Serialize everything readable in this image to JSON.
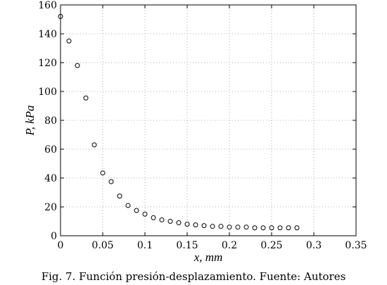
{
  "chart_data": {
    "type": "scatter",
    "xlabel": "x, mm",
    "ylabel": "P, kPa",
    "xlim": [
      0,
      0.35
    ],
    "ylim": [
      0,
      160
    ],
    "xticks": [
      0,
      0.05,
      0.1,
      0.15,
      0.2,
      0.25,
      0.3,
      0.35
    ],
    "xtick_labels": [
      "0",
      "0.05",
      "0.1",
      "0.15",
      "0.2",
      "0.25",
      "0.3",
      "0.35"
    ],
    "yticks": [
      0,
      20,
      40,
      60,
      80,
      100,
      120,
      140,
      160
    ],
    "ytick_labels": [
      "0",
      "20",
      "40",
      "60",
      "80",
      "100",
      "120",
      "140",
      "160"
    ],
    "grid": true,
    "marker": "open-circle",
    "series": [
      {
        "x": [
          0,
          0.01,
          0.02,
          0.03,
          0.04,
          0.05,
          0.06,
          0.07,
          0.08,
          0.09,
          0.1,
          0.11,
          0.12,
          0.13,
          0.14,
          0.15,
          0.16,
          0.17,
          0.18,
          0.19,
          0.2,
          0.21,
          0.22,
          0.23,
          0.24,
          0.25,
          0.26,
          0.27,
          0.28
        ],
        "y": [
          152,
          135,
          118,
          95.5,
          63,
          43.5,
          37.5,
          27.5,
          21,
          17.5,
          15,
          12.5,
          11,
          10,
          9,
          8,
          7.5,
          7,
          6.5,
          6.5,
          6,
          6,
          6,
          5.5,
          5.5,
          5.5,
          5.5,
          5.5,
          5.5
        ]
      }
    ]
  },
  "caption": "Fig. 7. Función presión-desplazamiento. Fuente: Autores"
}
